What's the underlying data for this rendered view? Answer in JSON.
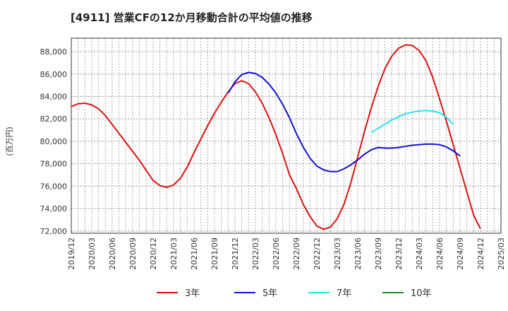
{
  "chart_data": {
    "type": "line",
    "title": "[4911]  営業CFの12か月移動合計の平均値の推移",
    "ylabel": "(百万円)",
    "xlabel": "",
    "ylim": [
      71800,
      89200
    ],
    "yticks": [
      72000,
      74000,
      76000,
      78000,
      80000,
      82000,
      84000,
      86000,
      88000
    ],
    "ytick_labels": [
      "72,000",
      "74,000",
      "76,000",
      "78,000",
      "80,000",
      "82,000",
      "84,000",
      "86,000",
      "88,000"
    ],
    "xticks": [
      "2019-12",
      "2020-03",
      "2020-06",
      "2020-09",
      "2020-12",
      "2021-03",
      "2021-06",
      "2021-09",
      "2021-12",
      "2022-03",
      "2022-06",
      "2022-09",
      "2022-12",
      "2023-03",
      "2023-06",
      "2023-09",
      "2023-12",
      "2024-03",
      "2024-06",
      "2024-09",
      "2024-12",
      "2025-03"
    ],
    "xtick_labels": [
      "2019/12",
      "2020/03",
      "2020/06",
      "2020/09",
      "2020/12",
      "2021/03",
      "2021/06",
      "2021/09",
      "2021/12",
      "2022/03",
      "2022/06",
      "2022/09",
      "2022/12",
      "2023/03",
      "2023/06",
      "2023/09",
      "2023/12",
      "2024/03",
      "2024/06",
      "2024/09",
      "2024/12",
      "2025/03"
    ],
    "grid": true,
    "legend_position": "bottom",
    "series": [
      {
        "name": "3年",
        "color": "#dd1111",
        "points": [
          [
            "2019-12",
            83100
          ],
          [
            "2020-01",
            83350
          ],
          [
            "2020-02",
            83400
          ],
          [
            "2020-03",
            83250
          ],
          [
            "2020-04",
            82900
          ],
          [
            "2020-05",
            82300
          ],
          [
            "2020-06",
            81500
          ],
          [
            "2020-07",
            80700
          ],
          [
            "2020-08",
            79900
          ],
          [
            "2020-09",
            79100
          ],
          [
            "2020-10",
            78300
          ],
          [
            "2020-11",
            77400
          ],
          [
            "2020-12",
            76500
          ],
          [
            "2021-01",
            76050
          ],
          [
            "2021-02",
            75900
          ],
          [
            "2021-03",
            76100
          ],
          [
            "2021-04",
            76700
          ],
          [
            "2021-05",
            77700
          ],
          [
            "2021-06",
            79000
          ],
          [
            "2021-07",
            80200
          ],
          [
            "2021-08",
            81400
          ],
          [
            "2021-09",
            82500
          ],
          [
            "2021-10",
            83500
          ],
          [
            "2021-11",
            84400
          ],
          [
            "2021-12",
            85150
          ],
          [
            "2022-01",
            85400
          ],
          [
            "2022-02",
            85150
          ],
          [
            "2022-03",
            84400
          ],
          [
            "2022-04",
            83400
          ],
          [
            "2022-05",
            82100
          ],
          [
            "2022-06",
            80600
          ],
          [
            "2022-07",
            78900
          ],
          [
            "2022-08",
            77000
          ],
          [
            "2022-09",
            75800
          ],
          [
            "2022-10",
            74400
          ],
          [
            "2022-11",
            73300
          ],
          [
            "2022-12",
            72450
          ],
          [
            "2023-01",
            72150
          ],
          [
            "2023-02",
            72350
          ],
          [
            "2023-03",
            73100
          ],
          [
            "2023-04",
            74400
          ],
          [
            "2023-05",
            76300
          ],
          [
            "2023-06",
            78600
          ],
          [
            "2023-07",
            80900
          ],
          [
            "2023-08",
            83000
          ],
          [
            "2023-09",
            84900
          ],
          [
            "2023-10",
            86500
          ],
          [
            "2023-11",
            87600
          ],
          [
            "2023-12",
            88300
          ],
          [
            "2024-01",
            88600
          ],
          [
            "2024-02",
            88550
          ],
          [
            "2024-03",
            88100
          ],
          [
            "2024-04",
            87200
          ],
          [
            "2024-05",
            85700
          ],
          [
            "2024-06",
            83800
          ],
          [
            "2024-07",
            81800
          ],
          [
            "2024-08",
            79700
          ],
          [
            "2024-09",
            77600
          ],
          [
            "2024-10",
            75500
          ],
          [
            "2024-11",
            73400
          ],
          [
            "2024-12",
            72200
          ]
        ]
      },
      {
        "name": "5年",
        "color": "#1111cc",
        "points": [
          [
            "2021-11",
            84300
          ],
          [
            "2021-12",
            85300
          ],
          [
            "2022-01",
            85950
          ],
          [
            "2022-02",
            86150
          ],
          [
            "2022-03",
            86050
          ],
          [
            "2022-04",
            85700
          ],
          [
            "2022-05",
            85100
          ],
          [
            "2022-06",
            84300
          ],
          [
            "2022-07",
            83300
          ],
          [
            "2022-08",
            82100
          ],
          [
            "2022-09",
            80700
          ],
          [
            "2022-10",
            79500
          ],
          [
            "2022-11",
            78500
          ],
          [
            "2022-12",
            77800
          ],
          [
            "2023-01",
            77450
          ],
          [
            "2023-02",
            77300
          ],
          [
            "2023-03",
            77300
          ],
          [
            "2023-04",
            77550
          ],
          [
            "2023-05",
            77900
          ],
          [
            "2023-06",
            78350
          ],
          [
            "2023-07",
            78850
          ],
          [
            "2023-08",
            79250
          ],
          [
            "2023-09",
            79450
          ],
          [
            "2023-10",
            79400
          ],
          [
            "2023-11",
            79400
          ],
          [
            "2023-12",
            79450
          ],
          [
            "2024-01",
            79550
          ],
          [
            "2024-02",
            79650
          ],
          [
            "2024-03",
            79700
          ],
          [
            "2024-04",
            79750
          ],
          [
            "2024-05",
            79750
          ],
          [
            "2024-06",
            79700
          ],
          [
            "2024-07",
            79500
          ],
          [
            "2024-08",
            79150
          ],
          [
            "2024-09",
            78700
          ]
        ]
      },
      {
        "name": "7年",
        "color": "#22e5ee",
        "points": [
          [
            "2023-08",
            80800
          ],
          [
            "2023-09",
            81150
          ],
          [
            "2023-10",
            81550
          ],
          [
            "2023-11",
            81900
          ],
          [
            "2023-12",
            82200
          ],
          [
            "2024-01",
            82450
          ],
          [
            "2024-02",
            82600
          ],
          [
            "2024-03",
            82700
          ],
          [
            "2024-04",
            82750
          ],
          [
            "2024-05",
            82700
          ],
          [
            "2024-06",
            82550
          ],
          [
            "2024-07",
            82150
          ],
          [
            "2024-08",
            81500
          ]
        ]
      },
      {
        "name": "10年",
        "color": "#228822",
        "points": []
      }
    ]
  }
}
